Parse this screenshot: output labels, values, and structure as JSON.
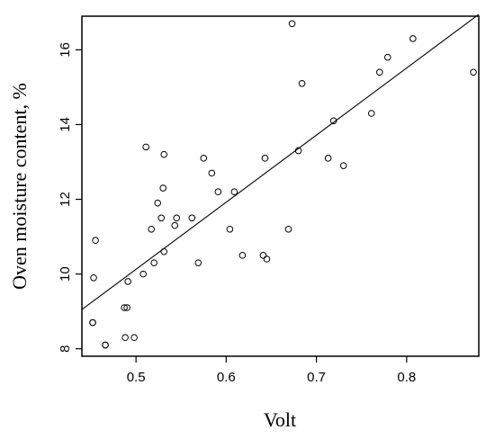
{
  "chart_data": {
    "type": "scatter",
    "title": "",
    "xlabel": "Volt",
    "ylabel": "Oven moisture content, %",
    "xlim": [
      0.44,
      0.88
    ],
    "ylim": [
      7.8,
      16.9
    ],
    "x_ticks": [
      0.5,
      0.6,
      0.7,
      0.8
    ],
    "x_tick_labels": [
      "0.5",
      "0.6",
      "0.7",
      "0.8"
    ],
    "y_ticks": [
      8,
      10,
      12,
      14,
      16
    ],
    "y_tick_labels": [
      "8",
      "10",
      "12",
      "14",
      "16"
    ],
    "grid": false,
    "legend": "none",
    "series": [
      {
        "marker": "open-circle",
        "points": [
          [
            0.452,
            8.7
          ],
          [
            0.452,
            8.7
          ],
          [
            0.453,
            9.9
          ],
          [
            0.455,
            10.9
          ],
          [
            0.466,
            8.1
          ],
          [
            0.466,
            8.1
          ],
          [
            0.487,
            9.1
          ],
          [
            0.488,
            8.3
          ],
          [
            0.49,
            9.1
          ],
          [
            0.491,
            9.8
          ],
          [
            0.498,
            8.3
          ],
          [
            0.508,
            10.0
          ],
          [
            0.511,
            13.4
          ],
          [
            0.517,
            11.2
          ],
          [
            0.52,
            10.3
          ],
          [
            0.524,
            11.9
          ],
          [
            0.528,
            11.5
          ],
          [
            0.53,
            12.3
          ],
          [
            0.531,
            10.6
          ],
          [
            0.531,
            13.2
          ],
          [
            0.543,
            11.3
          ],
          [
            0.545,
            11.5
          ],
          [
            0.562,
            11.5
          ],
          [
            0.569,
            10.3
          ],
          [
            0.575,
            13.1
          ],
          [
            0.584,
            12.7
          ],
          [
            0.591,
            12.2
          ],
          [
            0.604,
            11.2
          ],
          [
            0.609,
            12.2
          ],
          [
            0.618,
            10.5
          ],
          [
            0.641,
            10.5
          ],
          [
            0.643,
            13.1
          ],
          [
            0.645,
            10.4
          ],
          [
            0.669,
            11.2
          ],
          [
            0.673,
            16.7
          ],
          [
            0.68,
            13.3
          ],
          [
            0.684,
            15.1
          ],
          [
            0.713,
            13.1
          ],
          [
            0.719,
            14.1
          ],
          [
            0.73,
            12.9
          ],
          [
            0.761,
            14.3
          ],
          [
            0.77,
            15.4
          ],
          [
            0.779,
            15.8
          ],
          [
            0.807,
            16.3
          ],
          [
            0.874,
            15.4
          ]
        ]
      }
    ],
    "fit_line": {
      "x": [
        0.44,
        0.88
      ],
      "y": [
        9.05,
        16.95
      ]
    }
  }
}
